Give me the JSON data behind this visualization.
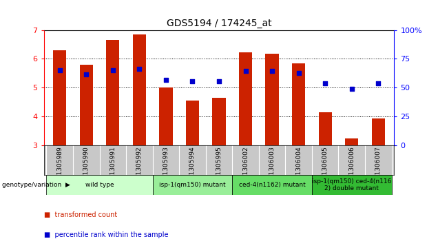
{
  "title": "GDS5194 / 174245_at",
  "samples": [
    "GSM1305989",
    "GSM1305990",
    "GSM1305991",
    "GSM1305992",
    "GSM1305993",
    "GSM1305994",
    "GSM1305995",
    "GSM1306002",
    "GSM1306003",
    "GSM1306004",
    "GSM1306005",
    "GSM1306006",
    "GSM1306007"
  ],
  "bar_values": [
    6.3,
    5.8,
    6.65,
    6.85,
    5.0,
    4.55,
    4.65,
    6.22,
    6.18,
    5.85,
    4.15,
    3.22,
    3.93
  ],
  "bar_base": 3.0,
  "blue_values": [
    5.6,
    5.45,
    5.6,
    5.65,
    5.27,
    5.22,
    5.22,
    5.57,
    5.57,
    5.5,
    5.15,
    4.95,
    5.15
  ],
  "ylim": [
    3.0,
    7.0
  ],
  "yticks": [
    3,
    4,
    5,
    6,
    7
  ],
  "y2ticks_labels": [
    "0",
    "25",
    "50",
    "75",
    "100%"
  ],
  "bar_color": "#CC2200",
  "blue_color": "#0000CC",
  "plot_bg": "#FFFFFF",
  "tick_bg": "#C8C8C8",
  "groups": [
    {
      "label": "wild type",
      "start": 0,
      "end": 3,
      "color": "#CCFFCC"
    },
    {
      "label": "isp-1(qm150) mutant",
      "start": 4,
      "end": 6,
      "color": "#99EE99"
    },
    {
      "label": "ced-4(n1162) mutant",
      "start": 7,
      "end": 9,
      "color": "#66DD66"
    },
    {
      "label": "isp-1(qm150) ced-4(n116\n2) double mutant",
      "start": 10,
      "end": 12,
      "color": "#33BB33"
    }
  ],
  "legend_items": [
    {
      "label": "transformed count",
      "color": "#CC2200"
    },
    {
      "label": "percentile rank within the sample",
      "color": "#0000CC"
    }
  ],
  "genotype_label": "genotype/variation"
}
